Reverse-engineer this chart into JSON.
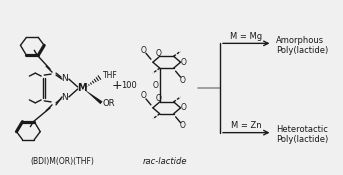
{
  "bg_color": "#f0f0f0",
  "line_color": "#1a1a1a",
  "arrow_color": "#1a1a1a",
  "branch_line_color": "#808080",
  "label_bdi": "(BDI)M(OR)(THF)",
  "label_rac": "rac-lactide",
  "label_plus": "+",
  "label_100": "100",
  "label_mg": "M = Mg",
  "label_zn": "M = Zn",
  "label_amorphous1": "Amorphous",
  "label_amorphous2": "Poly(lactide)",
  "label_heterotactic1": "Heterotactic",
  "label_heterotactic2": "Poly(lactide)",
  "fig_width": 3.43,
  "fig_height": 1.75,
  "dpi": 100
}
